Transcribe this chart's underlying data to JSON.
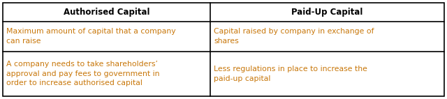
{
  "headers": [
    "Authorised Capital",
    "Paid-Up Capital"
  ],
  "rows": [
    [
      "Maximum amount of capital that a company\ncan raise",
      "Capital raised by company in exchange of\nshares"
    ],
    [
      "A company needs to take shareholders’\napproval and pay fees to government in\norder to increase authorised capital",
      "Less regulations in place to increase the\npaid-up capital"
    ]
  ],
  "header_color": "#000000",
  "cell_text_color": "#c8770a",
  "border_color": "#000000",
  "bg_color": "#ffffff",
  "header_fontsize": 8.5,
  "cell_fontsize": 7.8,
  "col_split": 0.47,
  "fig_width": 6.4,
  "fig_height": 1.42,
  "dpi": 100
}
